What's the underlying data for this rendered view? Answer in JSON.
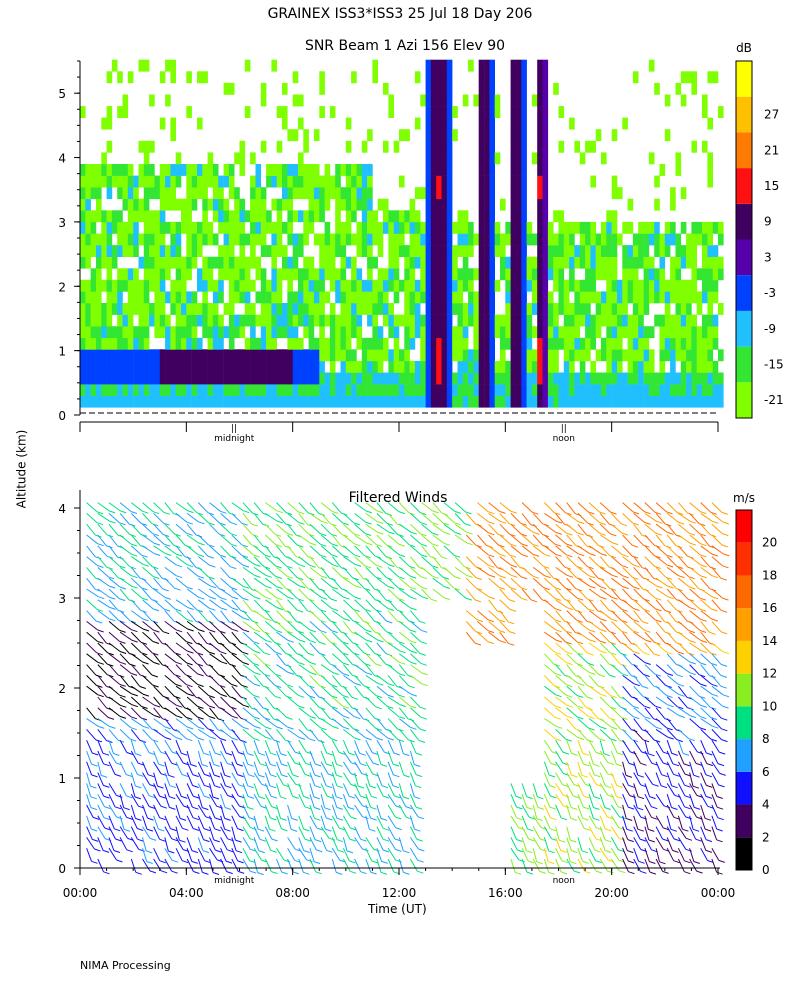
{
  "page": {
    "title": "GRAINEX ISS3*ISS3  25 Jul 18 Day 206",
    "subtitle": "SNR Beam 1 Azi 156 Elev 90",
    "ylabel": "Altitude (km)",
    "xlabel": "Time (UT)",
    "footer": "NIMA Processing"
  },
  "chart_data": [
    {
      "type": "heatmap",
      "title": "SNR Beam 1 Azi 156 Elev 90",
      "ylabel": "Altitude (km)",
      "ylim": [
        0,
        5.5
      ],
      "yticks": [
        0,
        1,
        2,
        3,
        4,
        5
      ],
      "xlim_hours": [
        0,
        24
      ],
      "x_annotations": [
        "midnight",
        "noon"
      ],
      "colorbar": {
        "unit": "dB",
        "levels": [
          -21,
          -15,
          -9,
          -3,
          3,
          9,
          15,
          21,
          27
        ],
        "colors": [
          "#7fff00",
          "#33e633",
          "#20c0ff",
          "#0040ff",
          "#5500aa",
          "#400060",
          "#ff1010",
          "#ff7a00",
          "#ffc000",
          "#ffff00"
        ]
      }
    },
    {
      "type": "heatmap",
      "title": "Filtered Winds",
      "xlabel": "Time (UT)",
      "ylim": [
        0,
        4.2
      ],
      "yticks": [
        0,
        1,
        2,
        3,
        4
      ],
      "xlim_hours": [
        0,
        24
      ],
      "xticks": [
        "00:00",
        "04:00",
        "08:00",
        "12:00",
        "16:00",
        "20:00",
        "00:00"
      ],
      "x_annotations": [
        "midnight",
        "noon"
      ],
      "colorbar": {
        "unit": "m/s",
        "levels": [
          0,
          2,
          4,
          6,
          8,
          10,
          12,
          14,
          16,
          18,
          20
        ],
        "colors": [
          "#000000",
          "#400060",
          "#1010ff",
          "#20a0ff",
          "#00e080",
          "#88ee22",
          "#ffd000",
          "#ffa000",
          "#ff6a00",
          "#ff3000",
          "#ff0000"
        ]
      }
    }
  ]
}
